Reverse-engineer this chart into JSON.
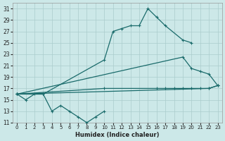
{
  "xlabel": "Humidex (Indice chaleur)",
  "background_color": "#cce8e8",
  "grid_color": "#aacccc",
  "line_color": "#1a6b6b",
  "line1_x": [
    0,
    1,
    2,
    3,
    4,
    5,
    6,
    7,
    8,
    9,
    10
  ],
  "line1_y": [
    16,
    15,
    16,
    16,
    13,
    14,
    13,
    12,
    11,
    12,
    13
  ],
  "line2_x": [
    0,
    3,
    10,
    11,
    12,
    13,
    14,
    15,
    16,
    17,
    19,
    20
  ],
  "line2_y": [
    16,
    16,
    22,
    27,
    27.5,
    28,
    28,
    31,
    29.5,
    28,
    25.5,
    25
  ],
  "line3_x": [
    0,
    22,
    23
  ],
  "line3_y": [
    16,
    17,
    17.5
  ],
  "line4_x": [
    0,
    10,
    16,
    17,
    18,
    19,
    20,
    21,
    22,
    23
  ],
  "line4_y": [
    16,
    17,
    17,
    17,
    17,
    17,
    17,
    17,
    17,
    17.5
  ],
  "line5_x": [
    0,
    19,
    20,
    21,
    22,
    23
  ],
  "line5_y": [
    16,
    22.5,
    20.5,
    20,
    19.5,
    17.5
  ],
  "ylim": [
    11,
    32
  ],
  "xlim": [
    -0.5,
    23.5
  ],
  "yticks": [
    11,
    13,
    15,
    17,
    19,
    21,
    23,
    25,
    27,
    29,
    31
  ],
  "xticks": [
    0,
    1,
    2,
    3,
    4,
    5,
    6,
    7,
    8,
    9,
    10,
    11,
    12,
    13,
    14,
    15,
    16,
    17,
    18,
    19,
    20,
    21,
    22,
    23
  ]
}
